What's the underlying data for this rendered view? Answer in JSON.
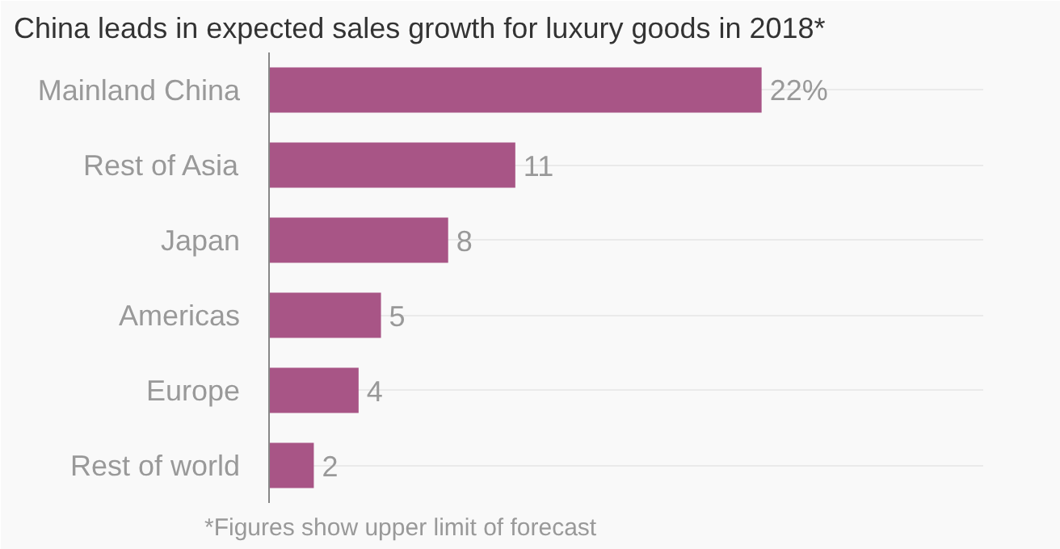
{
  "chart_data": {
    "type": "bar",
    "orientation": "horizontal",
    "title": "China leads in expected sales growth for luxury goods in 2018*",
    "categories": [
      "Mainland China",
      "Rest of Asia",
      "Japan",
      "Americas",
      "Europe",
      "Rest of world"
    ],
    "values": [
      22,
      11,
      8,
      5,
      4,
      2
    ],
    "value_labels": [
      "22%",
      "11",
      "8",
      "5",
      "4",
      "2"
    ],
    "color": "#a85586",
    "grid": "y",
    "annotations": [
      "*Figures show upper limit of forecast"
    ]
  }
}
